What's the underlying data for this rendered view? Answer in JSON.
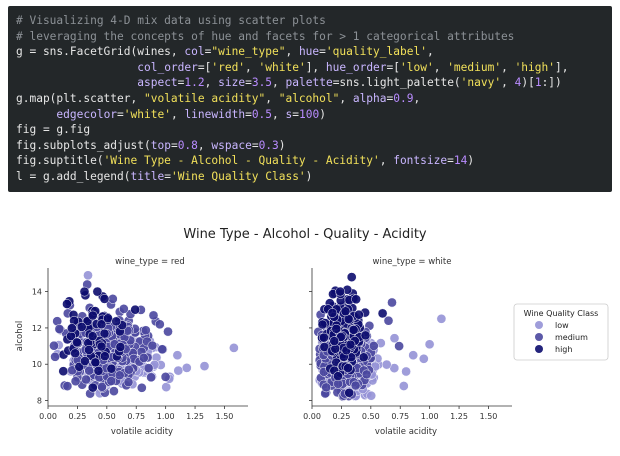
{
  "code": {
    "lines": [
      [
        {
          "t": "c",
          "v": "# Visualizing 4-D mix data using scatter plots"
        }
      ],
      [
        {
          "t": "c",
          "v": "# leveraging the concepts of hue and facets for > 1 categorical attributes"
        }
      ],
      [
        {
          "t": "i",
          "v": "g = sns.FacetGrid(wines, "
        },
        {
          "t": "k",
          "v": "col"
        },
        {
          "t": "i",
          "v": "="
        },
        {
          "t": "s",
          "v": "\"wine_type\""
        },
        {
          "t": "i",
          "v": ", "
        },
        {
          "t": "k",
          "v": "hue"
        },
        {
          "t": "i",
          "v": "="
        },
        {
          "t": "s",
          "v": "'quality_label'"
        },
        {
          "t": "i",
          "v": ","
        }
      ],
      [
        {
          "t": "i",
          "v": "                  "
        },
        {
          "t": "k",
          "v": "col_order"
        },
        {
          "t": "i",
          "v": "=["
        },
        {
          "t": "s",
          "v": "'red'"
        },
        {
          "t": "i",
          "v": ", "
        },
        {
          "t": "s",
          "v": "'white'"
        },
        {
          "t": "i",
          "v": "], "
        },
        {
          "t": "k",
          "v": "hue_order"
        },
        {
          "t": "i",
          "v": "=["
        },
        {
          "t": "s",
          "v": "'low'"
        },
        {
          "t": "i",
          "v": ", "
        },
        {
          "t": "s",
          "v": "'medium'"
        },
        {
          "t": "i",
          "v": ", "
        },
        {
          "t": "s",
          "v": "'high'"
        },
        {
          "t": "i",
          "v": "],"
        }
      ],
      [
        {
          "t": "i",
          "v": "                  "
        },
        {
          "t": "k",
          "v": "aspect"
        },
        {
          "t": "i",
          "v": "="
        },
        {
          "t": "n",
          "v": "1.2"
        },
        {
          "t": "i",
          "v": ", "
        },
        {
          "t": "k",
          "v": "size"
        },
        {
          "t": "i",
          "v": "="
        },
        {
          "t": "n",
          "v": "3.5"
        },
        {
          "t": "i",
          "v": ", "
        },
        {
          "t": "k",
          "v": "palette"
        },
        {
          "t": "i",
          "v": "=sns.light_palette("
        },
        {
          "t": "s",
          "v": "'navy'"
        },
        {
          "t": "i",
          "v": ", "
        },
        {
          "t": "n",
          "v": "4"
        },
        {
          "t": "i",
          "v": ")["
        },
        {
          "t": "n",
          "v": "1"
        },
        {
          "t": "i",
          "v": ":])"
        }
      ],
      [
        {
          "t": "i",
          "v": "g.map(plt.scatter, "
        },
        {
          "t": "s",
          "v": "\"volatile acidity\""
        },
        {
          "t": "i",
          "v": ", "
        },
        {
          "t": "s",
          "v": "\"alcohol\""
        },
        {
          "t": "i",
          "v": ", "
        },
        {
          "t": "k",
          "v": "alpha"
        },
        {
          "t": "i",
          "v": "="
        },
        {
          "t": "n",
          "v": "0.9"
        },
        {
          "t": "i",
          "v": ","
        }
      ],
      [
        {
          "t": "i",
          "v": "      "
        },
        {
          "t": "k",
          "v": "edgecolor"
        },
        {
          "t": "i",
          "v": "="
        },
        {
          "t": "s",
          "v": "'white'"
        },
        {
          "t": "i",
          "v": ", "
        },
        {
          "t": "k",
          "v": "linewidth"
        },
        {
          "t": "i",
          "v": "="
        },
        {
          "t": "n",
          "v": "0.5"
        },
        {
          "t": "i",
          "v": ", "
        },
        {
          "t": "k",
          "v": "s"
        },
        {
          "t": "i",
          "v": "="
        },
        {
          "t": "n",
          "v": "100"
        },
        {
          "t": "i",
          "v": ")"
        }
      ],
      [
        {
          "t": "i",
          "v": "fig = g.fig"
        }
      ],
      [
        {
          "t": "i",
          "v": "fig.subplots_adjust("
        },
        {
          "t": "k",
          "v": "top"
        },
        {
          "t": "i",
          "v": "="
        },
        {
          "t": "n",
          "v": "0.8"
        },
        {
          "t": "i",
          "v": ", "
        },
        {
          "t": "k",
          "v": "wspace"
        },
        {
          "t": "i",
          "v": "="
        },
        {
          "t": "n",
          "v": "0.3"
        },
        {
          "t": "i",
          "v": ")"
        }
      ],
      [
        {
          "t": "i",
          "v": "fig.suptitle("
        },
        {
          "t": "s",
          "v": "'Wine Type - Alcohol - Quality - Acidity'"
        },
        {
          "t": "i",
          "v": ", "
        },
        {
          "t": "k",
          "v": "fontsize"
        },
        {
          "t": "i",
          "v": "="
        },
        {
          "t": "n",
          "v": "14"
        },
        {
          "t": "i",
          "v": ")"
        }
      ],
      [
        {
          "t": "i",
          "v": "l = g.add_legend("
        },
        {
          "t": "k",
          "v": "title"
        },
        {
          "t": "i",
          "v": "="
        },
        {
          "t": "s",
          "v": "'Wine Quality Class'"
        },
        {
          "t": "i",
          "v": ")"
        }
      ]
    ]
  },
  "chart_data": {
    "type": "scatter",
    "title": "Wine Type - Alcohol - Quality - Acidity",
    "xlabel": "volatile acidity",
    "ylabel": "alcohol",
    "xlim": [
      0.0,
      1.7
    ],
    "ylim": [
      7.7,
      15.3
    ],
    "xticks": [
      "0.00",
      "0.25",
      "0.50",
      "0.75",
      "1.00",
      "1.25",
      "1.50"
    ],
    "xtick_values": [
      0,
      0.25,
      0.5,
      0.75,
      1.0,
      1.25,
      1.5
    ],
    "yticks": [
      "8",
      "10",
      "12",
      "14"
    ],
    "ytick_values": [
      8,
      10,
      12,
      14
    ],
    "legend": {
      "title": "Wine Quality Class",
      "placement": "right",
      "entries": [
        {
          "label": "low",
          "color": "#9592d6"
        },
        {
          "label": "medium",
          "color": "#4a479e"
        },
        {
          "label": "high",
          "color": "#0c0c6e"
        }
      ]
    },
    "panels": [
      {
        "title": "wine_type = red",
        "clusters": [
          {
            "series": "low",
            "cx": 0.58,
            "cy": 10.2,
            "sx": 0.19,
            "sy": 0.75,
            "n": 180
          },
          {
            "series": "medium",
            "cx": 0.5,
            "cy": 10.9,
            "sx": 0.17,
            "sy": 1.0,
            "n": 320
          },
          {
            "series": "high",
            "cx": 0.38,
            "cy": 11.6,
            "sx": 0.12,
            "sy": 1.05,
            "n": 70
          }
        ],
        "points": [
          {
            "series": "low",
            "x": 1.58,
            "y": 10.9
          },
          {
            "series": "low",
            "x": 1.33,
            "y": 9.9
          },
          {
            "series": "low",
            "x": 1.18,
            "y": 9.8
          },
          {
            "series": "low",
            "x": 1.1,
            "y": 10.5
          },
          {
            "series": "low",
            "x": 1.03,
            "y": 9.2
          },
          {
            "series": "low",
            "x": 0.34,
            "y": 14.9
          },
          {
            "series": "medium",
            "x": 1.02,
            "y": 11.8
          },
          {
            "series": "medium",
            "x": 0.95,
            "y": 12.2
          },
          {
            "series": "medium",
            "x": 1.0,
            "y": 9.3
          },
          {
            "series": "low",
            "x": 0.44,
            "y": 8.4
          },
          {
            "series": "high",
            "x": 0.31,
            "y": 14.0
          },
          {
            "series": "high",
            "x": 0.42,
            "y": 14.0
          },
          {
            "series": "high",
            "x": 0.48,
            "y": 13.6
          }
        ]
      },
      {
        "title": "wine_type = white",
        "clusters": [
          {
            "series": "low",
            "cx": 0.34,
            "cy": 9.9,
            "sx": 0.12,
            "sy": 0.8,
            "n": 150
          },
          {
            "series": "medium",
            "cx": 0.28,
            "cy": 10.7,
            "sx": 0.1,
            "sy": 1.1,
            "n": 380
          },
          {
            "series": "high",
            "cx": 0.27,
            "cy": 11.8,
            "sx": 0.08,
            "sy": 1.05,
            "n": 180
          }
        ],
        "points": [
          {
            "series": "low",
            "x": 1.1,
            "y": 12.5
          },
          {
            "series": "low",
            "x": 1.0,
            "y": 11.1
          },
          {
            "series": "low",
            "x": 0.95,
            "y": 10.3
          },
          {
            "series": "low",
            "x": 0.8,
            "y": 9.6
          },
          {
            "series": "low",
            "x": 0.78,
            "y": 8.8
          },
          {
            "series": "low",
            "x": 0.86,
            "y": 10.5
          },
          {
            "series": "medium",
            "x": 0.74,
            "y": 11.0
          },
          {
            "series": "medium",
            "x": 0.68,
            "y": 13.4
          },
          {
            "series": "medium",
            "x": 0.65,
            "y": 12.4
          },
          {
            "series": "high",
            "x": 0.6,
            "y": 12.8
          },
          {
            "series": "high",
            "x": 0.3,
            "y": 14.1
          },
          {
            "series": "high",
            "x": 0.24,
            "y": 14.0
          }
        ]
      }
    ]
  }
}
